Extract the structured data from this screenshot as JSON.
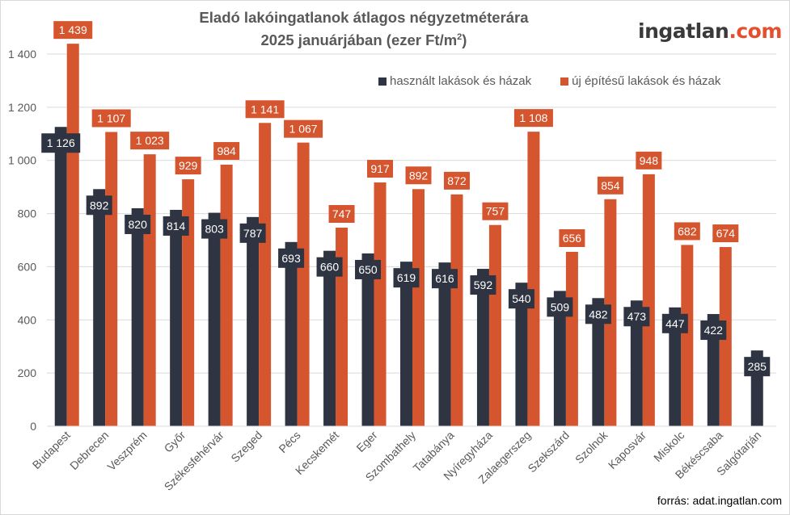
{
  "chart_data": {
    "type": "bar",
    "title_line1": "Eladó  lakóingatlanok átlagos négyzetméterára",
    "title_line2": "2025 januárjában (ezer Ft/m",
    "title_sup": "2",
    "title_close": ")",
    "xlabel": "",
    "ylabel": "",
    "ylim": [
      0,
      1500
    ],
    "yticks": [
      0,
      200,
      400,
      600,
      800,
      1000,
      1200,
      1400
    ],
    "ytick_labels": [
      "0",
      "200",
      "400",
      "600",
      "800",
      "1 000",
      "1 200",
      "1 400"
    ],
    "grid": true,
    "legend_position": "top-right",
    "categories": [
      "Budapest",
      "Debrecen",
      "Veszprém",
      "Győr",
      "Székesfehérvár",
      "Szeged",
      "Pécs",
      "Kecskemét",
      "Eger",
      "Szombathely",
      "Tatabánya",
      "Nyíregyháza",
      "Zalaegerszeg",
      "Szekszárd",
      "Szolnok",
      "Kaposvár",
      "Miskolc",
      "Békéscsaba",
      "Salgótarján"
    ],
    "series": [
      {
        "name": "használt lakások és házak",
        "color": "#2e3441",
        "values": [
          1126,
          892,
          820,
          814,
          803,
          787,
          693,
          660,
          650,
          619,
          616,
          592,
          540,
          509,
          482,
          473,
          447,
          422,
          285
        ],
        "labels": [
          "1 126",
          "892",
          "820",
          "814",
          "803",
          "787",
          "693",
          "660",
          "650",
          "619",
          "616",
          "592",
          "540",
          "509",
          "482",
          "473",
          "447",
          "422",
          "285"
        ]
      },
      {
        "name": "új építésű lakások és házak",
        "color": "#d4552e",
        "values": [
          1439,
          1107,
          1023,
          929,
          984,
          1141,
          1067,
          747,
          917,
          892,
          872,
          757,
          1108,
          656,
          854,
          948,
          682,
          674,
          null
        ],
        "labels": [
          "1 439",
          "1 107",
          "1 023",
          "929",
          "984",
          "1 141",
          "1 067",
          "747",
          "917",
          "892",
          "872",
          "757",
          "1 108",
          "656",
          "854",
          "948",
          "682",
          "674",
          null
        ]
      }
    ]
  },
  "logo": {
    "part1": "ingatlan",
    "part2": ".com"
  },
  "source": "forrás: adat.ingatlan.com"
}
